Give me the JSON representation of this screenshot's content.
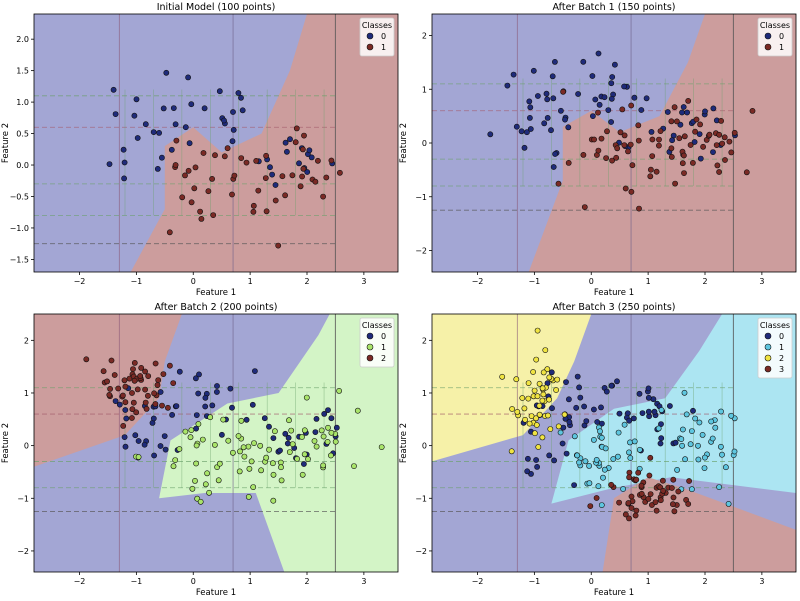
{
  "figure": {},
  "chart_data": [
    {
      "type": "scatter",
      "title": "Initial Model (100 points)",
      "xlabel": "Feature 1",
      "ylabel": "Feature 2",
      "xlim": [
        -2.8,
        3.6
      ],
      "ylim": [
        -1.7,
        2.4
      ],
      "xticks": [
        -2,
        -1,
        0,
        1,
        2,
        3
      ],
      "yticks": [
        -1.5,
        -1.0,
        -0.5,
        0.0,
        0.5,
        1.0,
        1.5,
        2.0
      ],
      "legend": {
        "title": "Classes",
        "position": "top-right"
      },
      "background": "blue-region left/top, red-region right/center",
      "series": [
        {
          "name": "0",
          "color": "#1f2b7a",
          "seed": 11,
          "n": 50,
          "clusters": [
            [
              -0.9,
              0.4,
              0.35,
              0.5
            ],
            [
              0.3,
              0.9,
              0.45,
              0.35
            ],
            [
              1.8,
              0.2,
              0.45,
              0.3
            ]
          ]
        },
        {
          "name": "1",
          "color": "#7a2a25",
          "seed": 12,
          "n": 50,
          "clusters": [
            [
              0.1,
              -0.3,
              0.35,
              0.35
            ],
            [
              1.2,
              -0.2,
              0.45,
              0.35
            ],
            [
              2.0,
              -0.1,
              0.4,
              0.35
            ]
          ]
        }
      ]
    },
    {
      "type": "scatter",
      "title": "After Batch 1 (150 points)",
      "xlabel": "Feature 1",
      "ylabel": "Feature 2",
      "xlim": [
        -2.8,
        3.6
      ],
      "ylim": [
        -2.4,
        2.4
      ],
      "xticks": [
        -2,
        -1,
        0,
        1,
        2,
        3
      ],
      "yticks": [
        -2,
        -1,
        0,
        1,
        2
      ],
      "legend": {
        "title": "Classes",
        "position": "top-right"
      },
      "series": [
        {
          "name": "0",
          "color": "#1f2b7a",
          "seed": 21,
          "n": 75,
          "clusters": [
            [
              -0.9,
              0.4,
              0.35,
              0.5
            ],
            [
              0.3,
              0.9,
              0.45,
              0.35
            ],
            [
              1.8,
              0.2,
              0.45,
              0.3
            ]
          ]
        },
        {
          "name": "1",
          "color": "#7a2a25",
          "seed": 22,
          "n": 75,
          "clusters": [
            [
              0.2,
              0.0,
              0.4,
              0.45
            ],
            [
              1.2,
              -0.1,
              0.45,
              0.35
            ],
            [
              2.0,
              0.1,
              0.4,
              0.35
            ]
          ]
        }
      ]
    },
    {
      "type": "scatter",
      "title": "After Batch 2 (200 points)",
      "xlabel": "Feature 1",
      "ylabel": "Feature 2",
      "xlim": [
        -2.8,
        3.6
      ],
      "ylim": [
        -2.4,
        2.5
      ],
      "xticks": [
        -2,
        -1,
        0,
        1,
        2,
        3
      ],
      "yticks": [
        -2,
        -1,
        0,
        1,
        2
      ],
      "legend": {
        "title": "Classes",
        "position": "top-right"
      },
      "series": [
        {
          "name": "0",
          "color": "#1f2b7a",
          "seed": 31,
          "n": 70,
          "clusters": [
            [
              -0.8,
              0.3,
              0.35,
              0.45
            ],
            [
              0.3,
              0.8,
              0.45,
              0.35
            ],
            [
              1.8,
              0.2,
              0.45,
              0.3
            ]
          ]
        },
        {
          "name": "1",
          "color": "#a9e46a",
          "seed": 32,
          "n": 80,
          "clusters": [
            [
              0.1,
              -0.2,
              0.4,
              0.45
            ],
            [
              1.2,
              -0.2,
              0.45,
              0.35
            ],
            [
              2.1,
              0.1,
              0.45,
              0.4
            ]
          ]
        },
        {
          "name": "2",
          "color": "#7a2a25",
          "seed": 33,
          "n": 50,
          "clusters": [
            [
              -1.0,
              1.05,
              0.3,
              0.3
            ]
          ]
        }
      ]
    },
    {
      "type": "scatter",
      "title": "After Batch 3 (250 points)",
      "xlabel": "Feature 1",
      "ylabel": "Feature 2",
      "xlim": [
        -2.8,
        3.6
      ],
      "ylim": [
        -2.4,
        2.5
      ],
      "xticks": [
        -2,
        -1,
        0,
        1,
        2,
        3
      ],
      "yticks": [
        -2,
        -1,
        0,
        1,
        2
      ],
      "legend": {
        "title": "Classes",
        "position": "top-right"
      },
      "series": [
        {
          "name": "0",
          "color": "#1f2b7a",
          "seed": 41,
          "n": 70,
          "clusters": [
            [
              -0.7,
              0.3,
              0.35,
              0.45
            ],
            [
              0.3,
              0.8,
              0.45,
              0.35
            ],
            [
              1.2,
              0.5,
              0.45,
              0.3
            ]
          ]
        },
        {
          "name": "1",
          "color": "#5ec6df",
          "seed": 42,
          "n": 75,
          "clusters": [
            [
              0.1,
              -0.2,
              0.4,
              0.4
            ],
            [
              1.9,
              0.1,
              0.45,
              0.45
            ]
          ]
        },
        {
          "name": "2",
          "color": "#f0e442",
          "seed": 43,
          "n": 50,
          "clusters": [
            [
              -1.0,
              0.9,
              0.25,
              0.55
            ]
          ]
        },
        {
          "name": "3",
          "color": "#7a2a25",
          "seed": 44,
          "n": 55,
          "clusters": [
            [
              1.0,
              -0.95,
              0.4,
              0.3
            ]
          ]
        }
      ]
    }
  ]
}
